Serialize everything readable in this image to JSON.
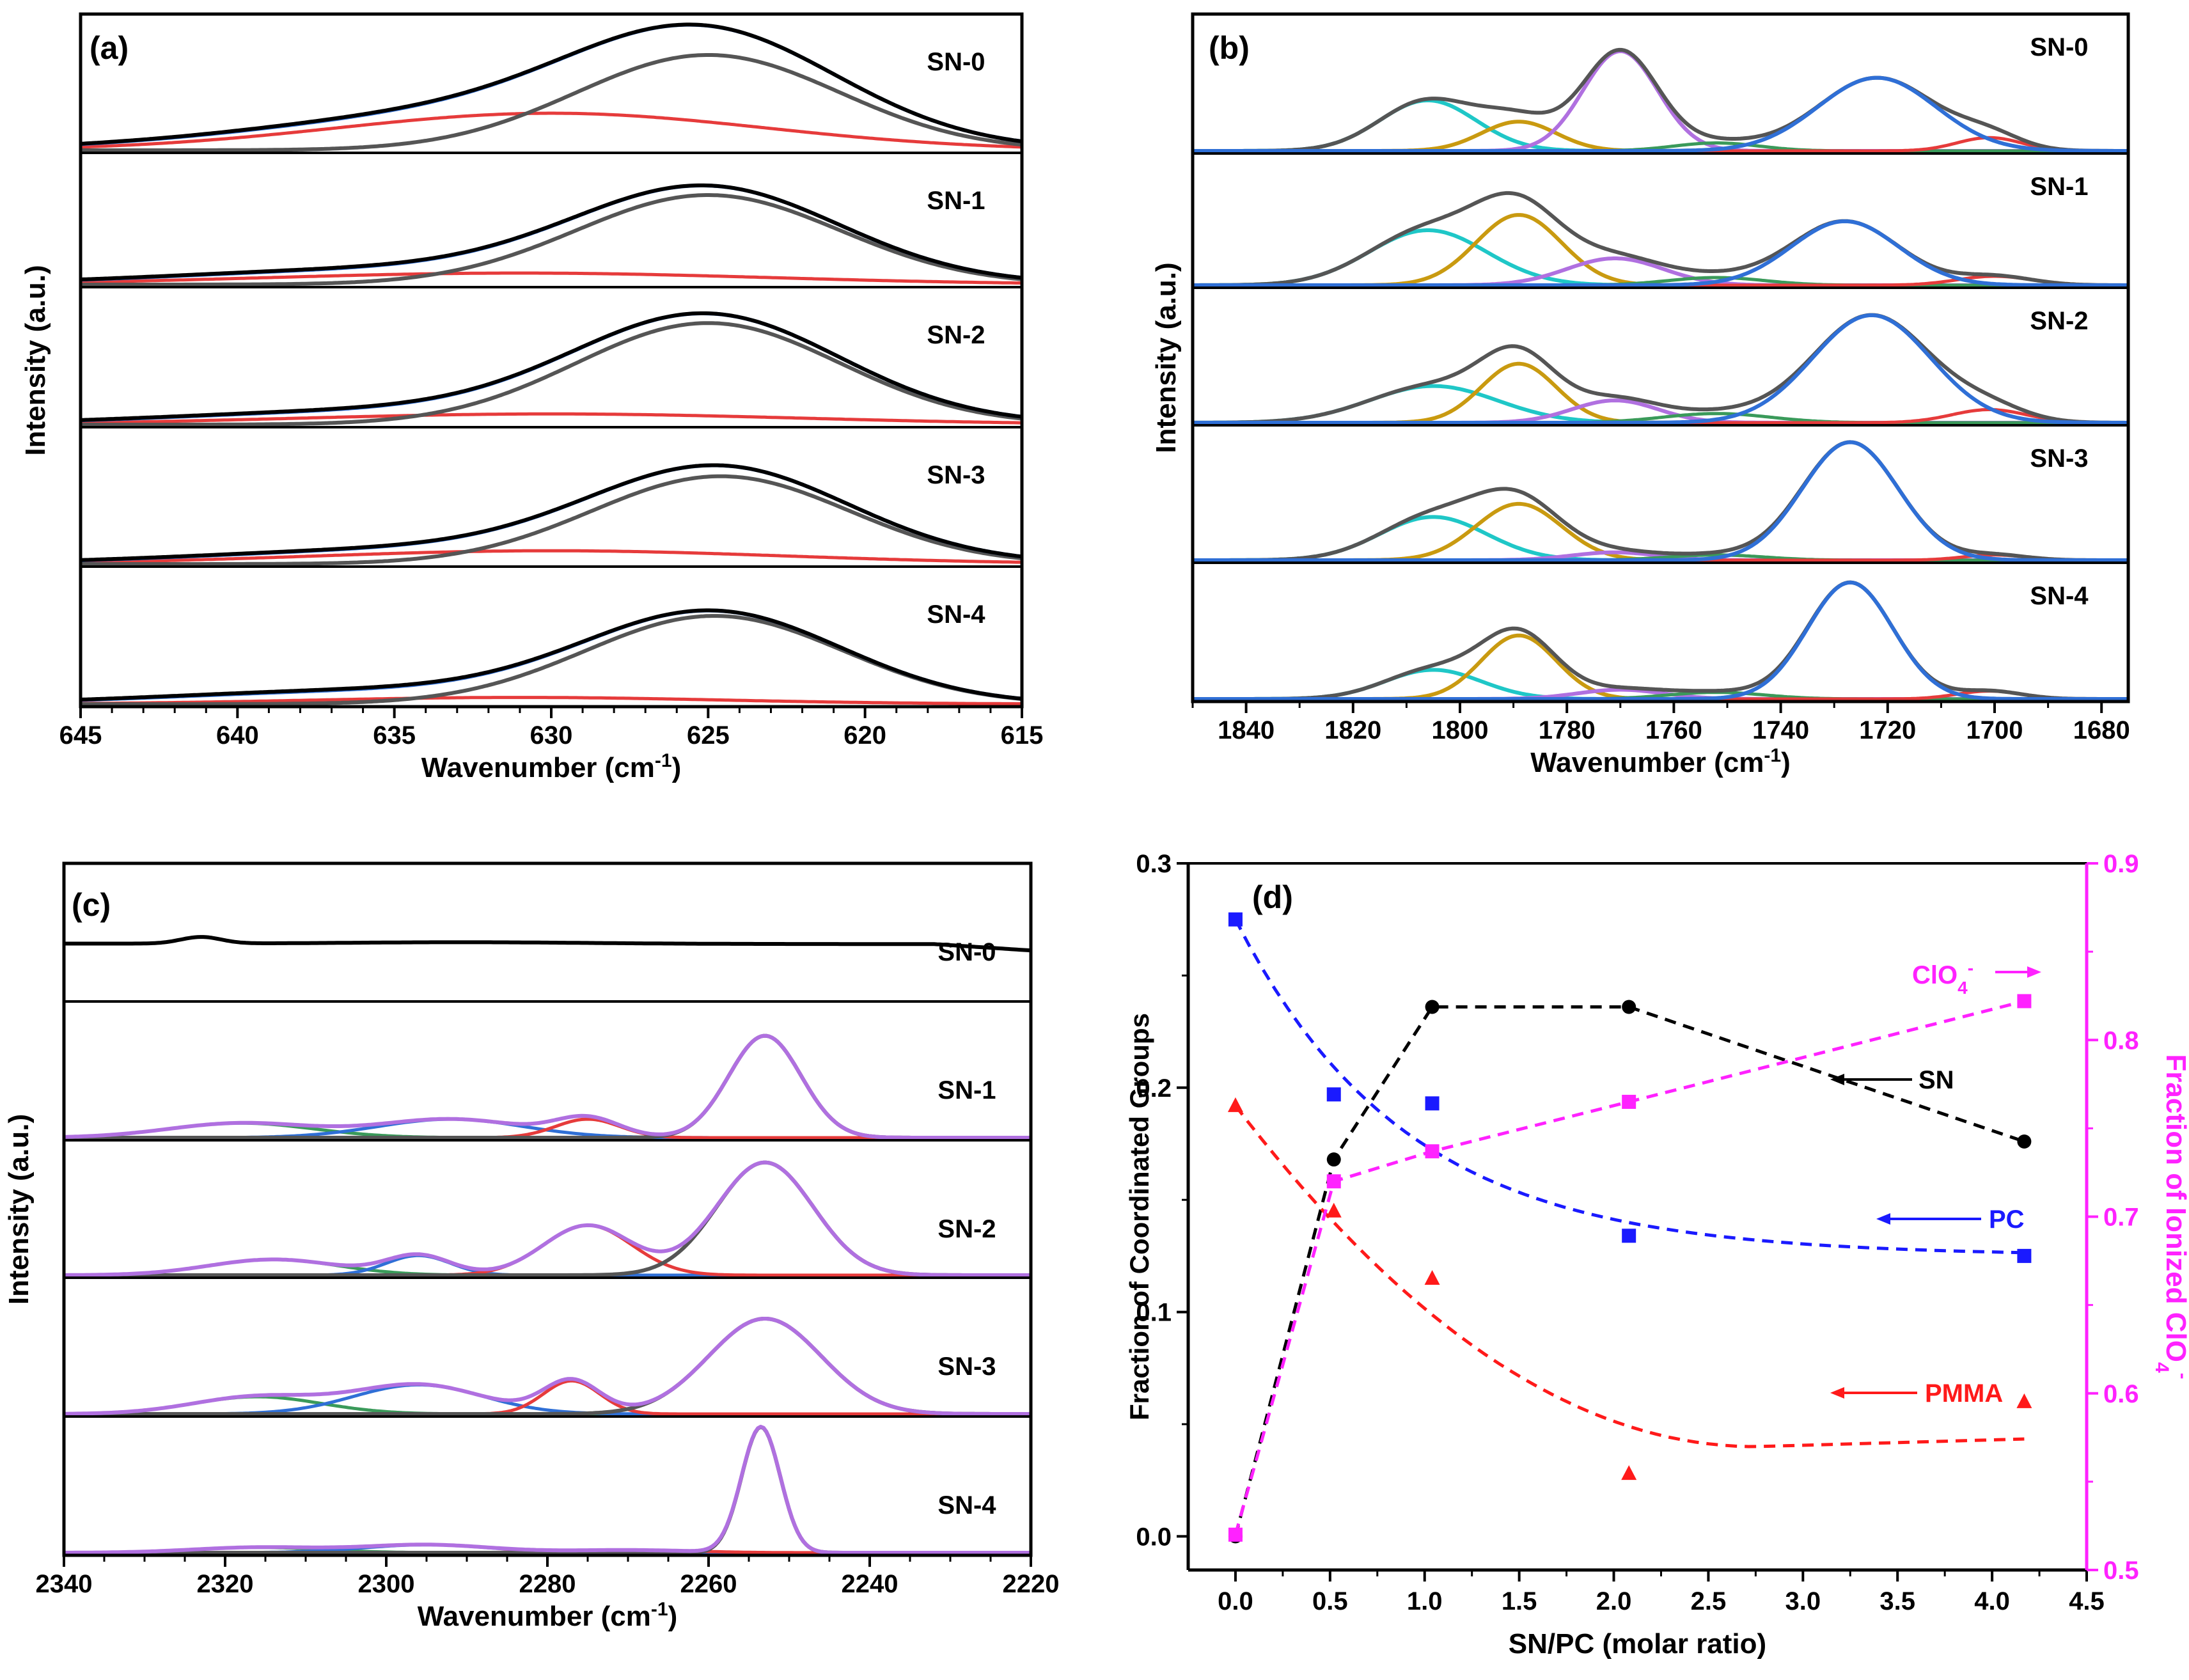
{
  "chart_data": [
    {
      "panel_label": "(a)",
      "type": "line",
      "xlabel": "Wavenumber (cm",
      "xlabel_sup": "-1",
      "xlabel_close": ")",
      "ylabel": "Intensity (a.u.)",
      "xlim": [
        645,
        615
      ],
      "x_ticks": [
        "645",
        "640",
        "635",
        "630",
        "625",
        "620",
        "615"
      ],
      "sample_labels": [
        "SN-0",
        "SN-1",
        "SN-2",
        "SN-3",
        "SN-4"
      ],
      "fit_peaks_cm-1": {
        "main": 624.9,
        "shoulder": 630
      },
      "series_colors": {
        "measured": "#000000",
        "fit_sum": "#2f6fd6",
        "peak_main": "#555555",
        "peak_shoulder": "#e63b3b"
      }
    },
    {
      "panel_label": "(b)",
      "type": "line",
      "xlabel": "Wavenumber (cm",
      "xlabel_sup": "-1",
      "xlabel_close": ")",
      "ylabel": "Intensity (a.u.)",
      "xlim": [
        1850,
        1675
      ],
      "x_ticks": [
        "1840",
        "1820",
        "1800",
        "1780",
        "1760",
        "1740",
        "1720",
        "1700",
        "1680"
      ],
      "sample_labels": [
        "SN-0",
        "SN-1",
        "SN-2",
        "SN-3",
        "SN-4"
      ],
      "fit_peaks_cm-1": [
        1806,
        1789,
        1770,
        1752,
        1722,
        1700
      ],
      "series_colors": {
        "envelope": "#555555",
        "peak_1806": "#1fc7c7",
        "peak_1789": "#c99a10",
        "peak_1770": "#b070e0",
        "peak_1752": "#3a9a5a",
        "peak_1722": "#2f6fd6",
        "peak_1700": "#e63b3b"
      }
    },
    {
      "panel_label": "(c)",
      "type": "line",
      "xlabel": "Wavenumber (cm",
      "xlabel_sup": "-1",
      "xlabel_close": ")",
      "ylabel": "Intensity (a.u.)",
      "xlim": [
        2340,
        2220
      ],
      "x_ticks": [
        "2340",
        "2320",
        "2300",
        "2280",
        "2260",
        "2240",
        "2220"
      ],
      "sample_labels": [
        "SN-0",
        "SN-1",
        "SN-2",
        "SN-3",
        "SN-4"
      ],
      "fit_peaks_cm-1": [
        2253,
        2276,
        2296,
        2316
      ],
      "series_colors": {
        "envelope": "#b070e0",
        "peak_2253": "#555555",
        "peak_2276": "#e63b3b",
        "peak_2296": "#2f6fd6",
        "peak_2316": "#3a9a5a",
        "sn0_trace": "#000000"
      }
    },
    {
      "panel_label": "(d)",
      "type": "scatter",
      "xlabel": "SN/PC (molar ratio)",
      "ylabel_left": "Fraction of Coordinated Groups",
      "ylabel_right": "Fraction of Ionized ClO",
      "ylabel_right_sub": "4",
      "ylabel_right_sup": "-",
      "xlim": [
        -0.25,
        4.5
      ],
      "ylim_left": [
        -0.015,
        0.3
      ],
      "ylim_right": [
        0.5,
        0.9
      ],
      "x_ticks": [
        "0.0",
        "0.5",
        "1.0",
        "1.5",
        "2.0",
        "2.5",
        "3.0",
        "3.5",
        "4.0",
        "4.5"
      ],
      "y_ticks_left": [
        "0.0",
        "0.1",
        "0.2",
        "0.3"
      ],
      "y_ticks_right": [
        "0.5",
        "0.6",
        "0.7",
        "0.8",
        "0.9"
      ],
      "series": [
        {
          "name": "SN",
          "axis": "left",
          "marker": "circle",
          "color": "#000000",
          "x": [
            0,
            0.52,
            1.04,
            2.08,
            4.17
          ],
          "y": [
            0.0,
            0.168,
            0.236,
            0.236,
            0.176
          ]
        },
        {
          "name": "PC",
          "axis": "left",
          "marker": "square",
          "color": "#1a1aff",
          "x": [
            0,
            0.52,
            1.04,
            2.08,
            4.17
          ],
          "y": [
            0.275,
            0.197,
            0.193,
            0.134,
            0.125
          ]
        },
        {
          "name": "PMMA",
          "axis": "left",
          "marker": "triangle",
          "color": "#ff1a1a",
          "x": [
            0,
            0.52,
            1.04,
            2.08,
            4.17
          ],
          "y": [
            0.192,
            0.145,
            0.115,
            0.028,
            0.06
          ]
        },
        {
          "name": "ClO",
          "name_sub": "4",
          "name_sup": "-",
          "axis": "right",
          "marker": "square",
          "color": "#ff22ff",
          "x": [
            0,
            0.52,
            1.04,
            2.08,
            4.17
          ],
          "y": [
            0.52,
            0.72,
            0.737,
            0.765,
            0.822
          ]
        }
      ]
    }
  ]
}
